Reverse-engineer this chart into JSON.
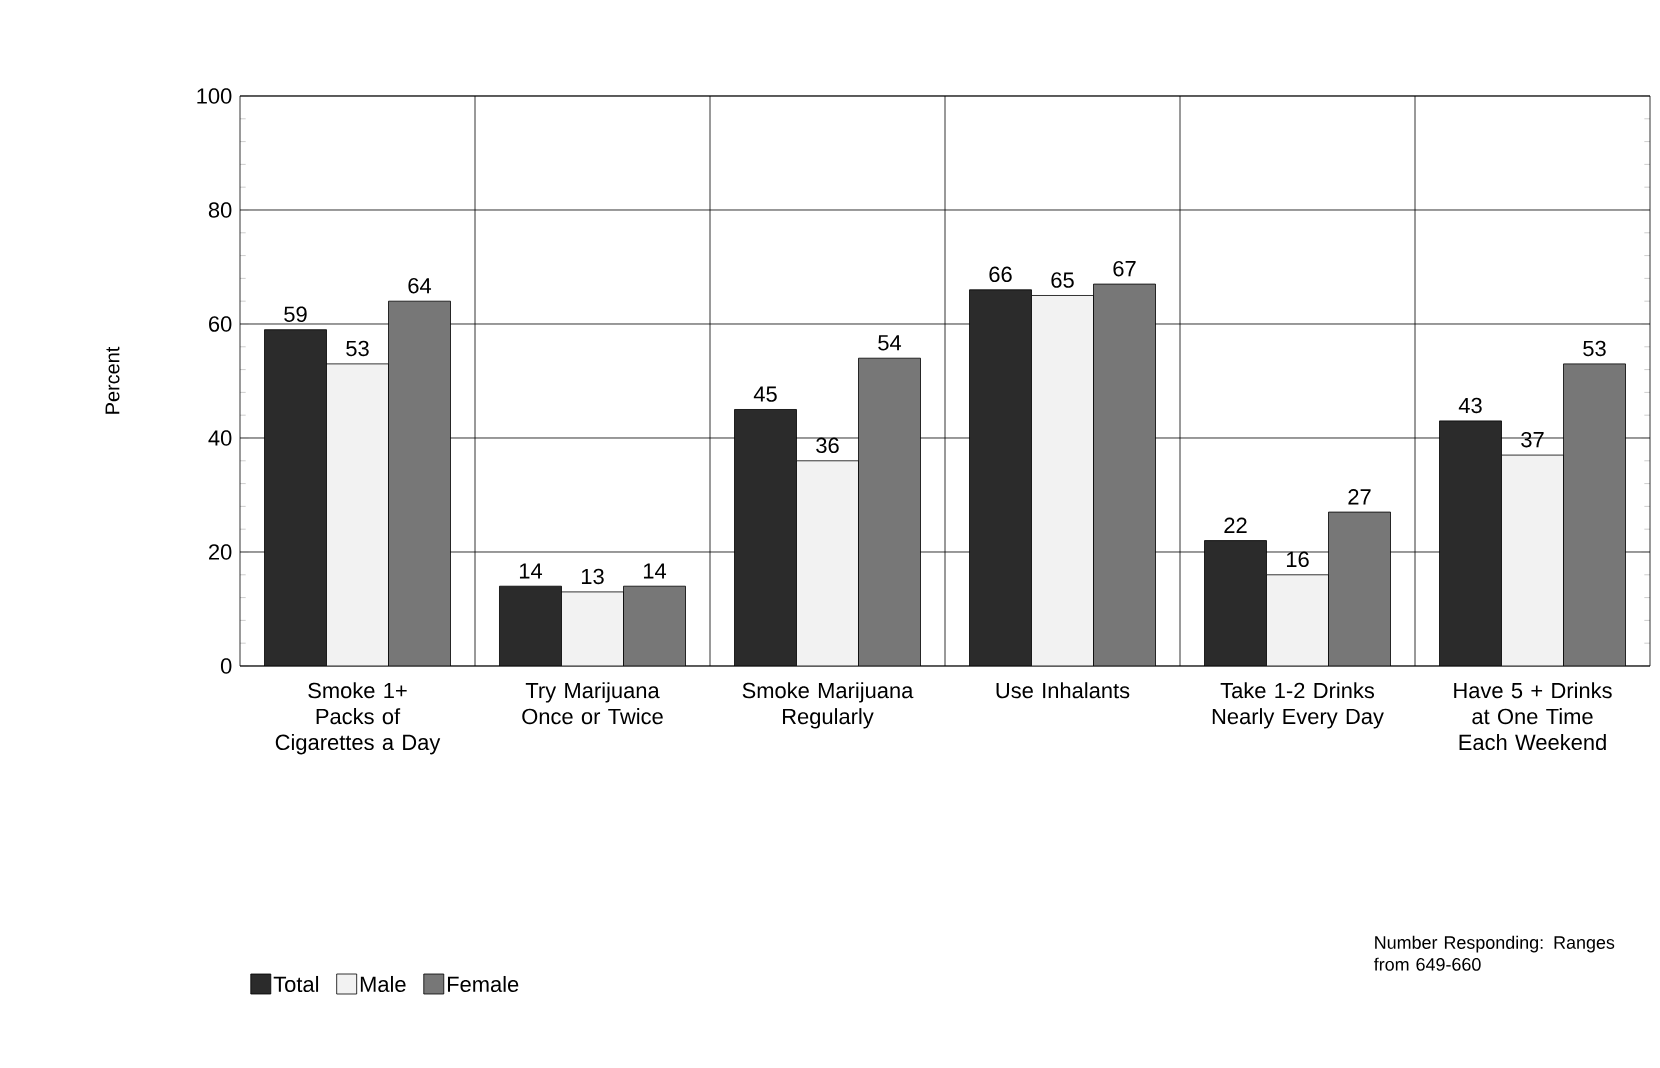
{
  "chart_data": {
    "type": "bar",
    "categories": [
      "Smoke 1+ Packs of Cigarettes a Day",
      "Try Marijuana Once or Twice",
      "Smoke Marijuana Regularly",
      "Use Inhalants",
      "Take 1-2 Drinks Nearly Every Day",
      "Have 5 + Drinks at One Time Each Weekend"
    ],
    "series": [
      {
        "name": "Total",
        "color": "#2b2b2b",
        "values": [
          59,
          14,
          45,
          66,
          22,
          43
        ]
      },
      {
        "name": "Male",
        "color": "#f2f2f2",
        "values": [
          53,
          13,
          36,
          65,
          16,
          37
        ]
      },
      {
        "name": "Female",
        "color": "#777777",
        "values": [
          64,
          14,
          54,
          67,
          27,
          53
        ]
      }
    ],
    "ylabel": "Percent",
    "ylim": [
      0,
      100
    ],
    "yticks": [
      0,
      20,
      40,
      60,
      80,
      100
    ],
    "grid": true,
    "legend": "bottom left",
    "data_labels": true,
    "annotations": [
      "Number Responding: Ranges from 649-660"
    ]
  }
}
